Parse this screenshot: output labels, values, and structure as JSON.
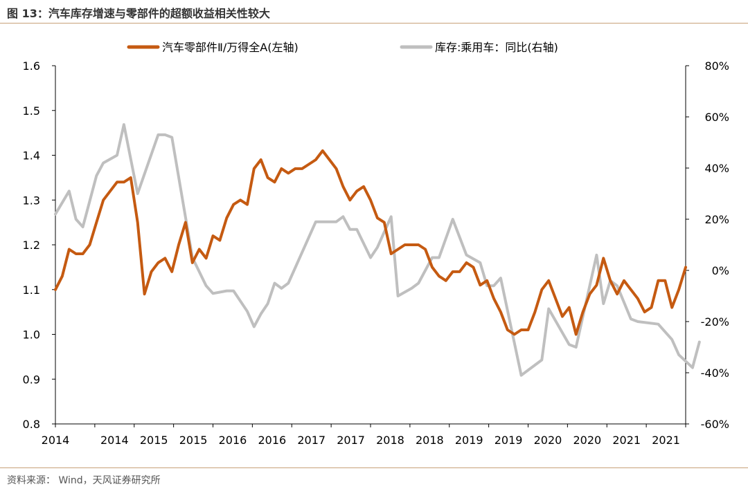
{
  "figure": {
    "title": "图 13：汽车库存增速与零部件的超额收益相关性较大",
    "source": "资料来源：  Wind，天风证券研究所"
  },
  "colors": {
    "left_series": "#c55a11",
    "right_series": "#bfbfbf",
    "axis": "#000000",
    "rule": "#c8a078"
  },
  "chart_data": {
    "type": "line",
    "legend_position": "top",
    "grid": false,
    "x_tick_labels": [
      "2014",
      "2014",
      "2015",
      "2015",
      "2016",
      "2016",
      "2017",
      "2017",
      "2018",
      "2018",
      "2019",
      "2019",
      "2020",
      "2020",
      "2021",
      "2021"
    ],
    "xlim": [
      "2014-01",
      "2021-09"
    ],
    "left_axis": {
      "ticks": [
        "0.8",
        "0.9",
        "1.0",
        "1.1",
        "1.2",
        "1.3",
        "1.4",
        "1.5",
        "1.6"
      ],
      "ylim": [
        0.8,
        1.6
      ]
    },
    "right_axis": {
      "ticks": [
        "-60%",
        "-40%",
        "-20%",
        "0%",
        "20%",
        "40%",
        "60%",
        "80%"
      ],
      "ylim": [
        -60,
        80
      ]
    },
    "series": [
      {
        "name": "汽车零部件Ⅱ/万得全A(左轴)",
        "axis": "left",
        "points": [
          [
            "2014-01",
            1.1
          ],
          [
            "2014-02",
            1.13
          ],
          [
            "2014-03",
            1.19
          ],
          [
            "2014-04",
            1.18
          ],
          [
            "2014-05",
            1.18
          ],
          [
            "2014-06",
            1.2
          ],
          [
            "2014-07",
            1.25
          ],
          [
            "2014-08",
            1.3
          ],
          [
            "2014-09",
            1.32
          ],
          [
            "2014-10",
            1.34
          ],
          [
            "2014-11",
            1.34
          ],
          [
            "2014-12",
            1.35
          ],
          [
            "2015-01",
            1.25
          ],
          [
            "2015-02",
            1.09
          ],
          [
            "2015-03",
            1.14
          ],
          [
            "2015-04",
            1.16
          ],
          [
            "2015-05",
            1.17
          ],
          [
            "2015-06",
            1.14
          ],
          [
            "2015-07",
            1.2
          ],
          [
            "2015-08",
            1.25
          ],
          [
            "2015-09",
            1.16
          ],
          [
            "2015-10",
            1.19
          ],
          [
            "2015-11",
            1.17
          ],
          [
            "2015-12",
            1.22
          ],
          [
            "2016-01",
            1.21
          ],
          [
            "2016-02",
            1.26
          ],
          [
            "2016-03",
            1.29
          ],
          [
            "2016-04",
            1.3
          ],
          [
            "2016-05",
            1.29
          ],
          [
            "2016-06",
            1.37
          ],
          [
            "2016-07",
            1.39
          ],
          [
            "2016-08",
            1.35
          ],
          [
            "2016-09",
            1.34
          ],
          [
            "2016-10",
            1.37
          ],
          [
            "2016-11",
            1.36
          ],
          [
            "2016-12",
            1.37
          ],
          [
            "2017-01",
            1.37
          ],
          [
            "2017-02",
            1.38
          ],
          [
            "2017-03",
            1.39
          ],
          [
            "2017-04",
            1.41
          ],
          [
            "2017-05",
            1.39
          ],
          [
            "2017-06",
            1.37
          ],
          [
            "2017-07",
            1.33
          ],
          [
            "2017-08",
            1.3
          ],
          [
            "2017-09",
            1.32
          ],
          [
            "2017-10",
            1.33
          ],
          [
            "2017-11",
            1.3
          ],
          [
            "2017-12",
            1.26
          ],
          [
            "2018-01",
            1.25
          ],
          [
            "2018-02",
            1.18
          ],
          [
            "2018-03",
            1.19
          ],
          [
            "2018-04",
            1.2
          ],
          [
            "2018-05",
            1.2
          ],
          [
            "2018-06",
            1.2
          ],
          [
            "2018-07",
            1.19
          ],
          [
            "2018-08",
            1.15
          ],
          [
            "2018-09",
            1.13
          ],
          [
            "2018-10",
            1.12
          ],
          [
            "2018-11",
            1.14
          ],
          [
            "2018-12",
            1.14
          ],
          [
            "2019-01",
            1.16
          ],
          [
            "2019-02",
            1.15
          ],
          [
            "2019-03",
            1.11
          ],
          [
            "2019-04",
            1.12
          ],
          [
            "2019-05",
            1.08
          ],
          [
            "2019-06",
            1.05
          ],
          [
            "2019-07",
            1.01
          ],
          [
            "2019-08",
            1.0
          ],
          [
            "2019-09",
            1.01
          ],
          [
            "2019-10",
            1.01
          ],
          [
            "2019-11",
            1.05
          ],
          [
            "2019-12",
            1.1
          ],
          [
            "2020-01",
            1.12
          ],
          [
            "2020-02",
            1.08
          ],
          [
            "2020-03",
            1.04
          ],
          [
            "2020-04",
            1.06
          ],
          [
            "2020-05",
            1.0
          ],
          [
            "2020-06",
            1.05
          ],
          [
            "2020-07",
            1.09
          ],
          [
            "2020-08",
            1.11
          ],
          [
            "2020-09",
            1.17
          ],
          [
            "2020-10",
            1.12
          ],
          [
            "2020-11",
            1.09
          ],
          [
            "2020-12",
            1.12
          ],
          [
            "2021-01",
            1.1
          ],
          [
            "2021-02",
            1.08
          ],
          [
            "2021-03",
            1.05
          ],
          [
            "2021-04",
            1.06
          ],
          [
            "2021-05",
            1.12
          ],
          [
            "2021-06",
            1.12
          ],
          [
            "2021-07",
            1.06
          ],
          [
            "2021-08",
            1.1
          ],
          [
            "2021-09",
            1.15
          ]
        ]
      },
      {
        "name": "库存:乘用车：同比(右轴)",
        "axis": "right",
        "points": [
          [
            "2014-01",
            22
          ],
          [
            "2014-03",
            31
          ],
          [
            "2014-04",
            20
          ],
          [
            "2014-05",
            17
          ],
          [
            "2014-07",
            37
          ],
          [
            "2014-08",
            42
          ],
          [
            "2014-10",
            45
          ],
          [
            "2014-11",
            57
          ],
          [
            "2015-01",
            30
          ],
          [
            "2015-04",
            53
          ],
          [
            "2015-05",
            53
          ],
          [
            "2015-06",
            52
          ],
          [
            "2015-09",
            5
          ],
          [
            "2015-11",
            -6
          ],
          [
            "2015-12",
            -9
          ],
          [
            "2016-02",
            -8
          ],
          [
            "2016-03",
            -8
          ],
          [
            "2016-05",
            -16
          ],
          [
            "2016-06",
            -22
          ],
          [
            "2016-07",
            -17
          ],
          [
            "2016-08",
            -13
          ],
          [
            "2016-09",
            -5
          ],
          [
            "2016-10",
            -7
          ],
          [
            "2016-11",
            -5
          ],
          [
            "2017-03",
            19
          ],
          [
            "2017-04",
            19
          ],
          [
            "2017-06",
            19
          ],
          [
            "2017-07",
            21
          ],
          [
            "2017-08",
            16
          ],
          [
            "2017-09",
            16
          ],
          [
            "2017-11",
            5
          ],
          [
            "2017-12",
            9
          ],
          [
            "2018-02",
            21
          ],
          [
            "2018-03",
            -10
          ],
          [
            "2018-05",
            -7
          ],
          [
            "2018-06",
            -5
          ],
          [
            "2018-08",
            5
          ],
          [
            "2018-09",
            5
          ],
          [
            "2018-11",
            20
          ],
          [
            "2019-01",
            6
          ],
          [
            "2019-03",
            3
          ],
          [
            "2019-04",
            -6
          ],
          [
            "2019-05",
            -6
          ],
          [
            "2019-06",
            -3
          ],
          [
            "2019-09",
            -41
          ],
          [
            "2019-12",
            -35
          ],
          [
            "2020-01",
            -15
          ],
          [
            "2020-04",
            -29
          ],
          [
            "2020-05",
            -30
          ],
          [
            "2020-08",
            6
          ],
          [
            "2020-09",
            -13
          ],
          [
            "2020-10",
            -4
          ],
          [
            "2020-11",
            -6
          ],
          [
            "2021-01",
            -19
          ],
          [
            "2021-02",
            -20
          ],
          [
            "2021-05",
            -21
          ],
          [
            "2021-07",
            -27
          ],
          [
            "2021-08",
            -33
          ],
          [
            "2021-10",
            -38
          ],
          [
            "2021-11",
            -28
          ]
        ]
      }
    ]
  }
}
